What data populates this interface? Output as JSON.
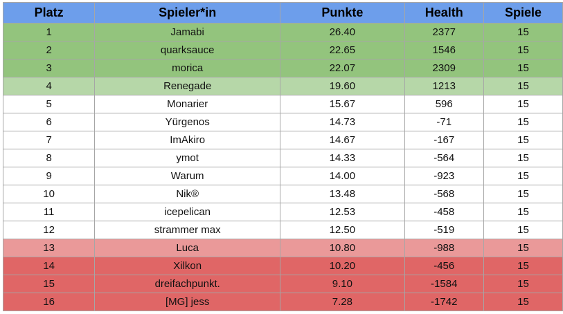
{
  "colors": {
    "header": "#6d9eeb",
    "top": "#93c47d",
    "light-green": "#b6d7a8",
    "white": "#ffffff",
    "light-red": "#ea9999",
    "red": "#e06666"
  },
  "table": {
    "headers": [
      "Platz",
      "Spieler*in",
      "Punkte",
      "Health",
      "Spiele"
    ],
    "rows": [
      {
        "platz": "1",
        "spieler": "Jamabi",
        "punkte": "26.40",
        "health": "2377",
        "spiele": "15",
        "color": "top"
      },
      {
        "platz": "2",
        "spieler": "quarksauce",
        "punkte": "22.65",
        "health": "1546",
        "spiele": "15",
        "color": "top"
      },
      {
        "platz": "3",
        "spieler": "morica",
        "punkte": "22.07",
        "health": "2309",
        "spiele": "15",
        "color": "top"
      },
      {
        "platz": "4",
        "spieler": "Renegade",
        "punkte": "19.60",
        "health": "1213",
        "spiele": "15",
        "color": "light-green"
      },
      {
        "platz": "5",
        "spieler": "Monarier",
        "punkte": "15.67",
        "health": "596",
        "spiele": "15",
        "color": "white"
      },
      {
        "platz": "6",
        "spieler": "Yürgenos",
        "punkte": "14.73",
        "health": "-71",
        "spiele": "15",
        "color": "white"
      },
      {
        "platz": "7",
        "spieler": "ImAkiro",
        "punkte": "14.67",
        "health": "-167",
        "spiele": "15",
        "color": "white"
      },
      {
        "platz": "8",
        "spieler": "ymot",
        "punkte": "14.33",
        "health": "-564",
        "spiele": "15",
        "color": "white"
      },
      {
        "platz": "9",
        "spieler": "Warum",
        "punkte": "14.00",
        "health": "-923",
        "spiele": "15",
        "color": "white"
      },
      {
        "platz": "10",
        "spieler": "Nik®",
        "punkte": "13.48",
        "health": "-568",
        "spiele": "15",
        "color": "white"
      },
      {
        "platz": "11",
        "spieler": "icepelican",
        "punkte": "12.53",
        "health": "-458",
        "spiele": "15",
        "color": "white"
      },
      {
        "platz": "12",
        "spieler": "strammer max",
        "punkte": "12.50",
        "health": "-519",
        "spiele": "15",
        "color": "white"
      },
      {
        "platz": "13",
        "spieler": "Luca",
        "punkte": "10.80",
        "health": "-988",
        "spiele": "15",
        "color": "light-red"
      },
      {
        "platz": "14",
        "spieler": "Xilkon",
        "punkte": "10.20",
        "health": "-456",
        "spiele": "15",
        "color": "red"
      },
      {
        "platz": "15",
        "spieler": "dreifachpunkt.",
        "punkte": "9.10",
        "health": "-1584",
        "spiele": "15",
        "color": "red"
      },
      {
        "platz": "16",
        "spieler": "[MG] jess",
        "punkte": "7.28",
        "health": "-1742",
        "spiele": "15",
        "color": "red"
      }
    ]
  }
}
